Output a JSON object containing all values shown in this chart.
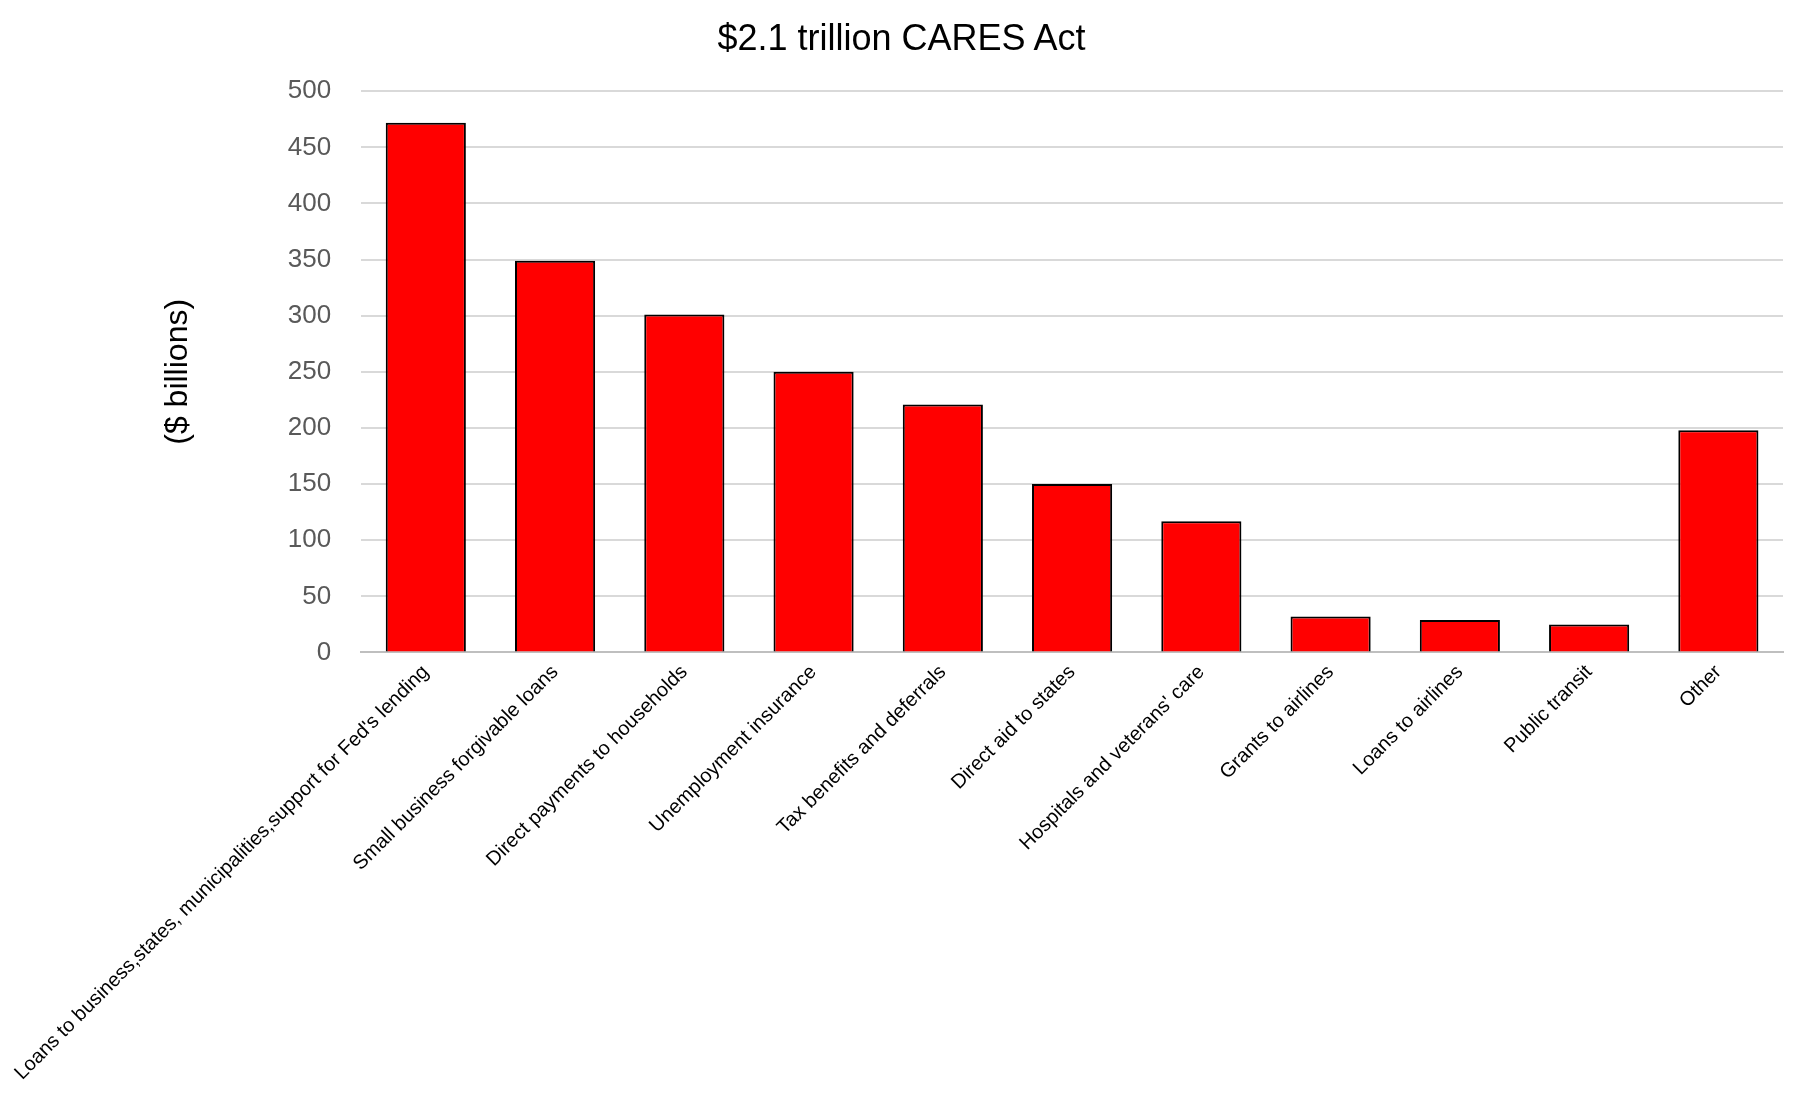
{
  "chart_data": {
    "type": "bar",
    "title": "$2.1 trillion CARES Act",
    "ylabel": "($ billions)",
    "categories": [
      "Loans to business,states, municipalities,support for Fed's lending",
      "Small business forgivable loans",
      "Direct payments to households",
      "Unemployment insurance",
      "Tax benefits and deferrals",
      "Direct aid to states",
      "Hospitals and veterans' care",
      "Grants to airlines",
      "Loans to airlines",
      "Public transit",
      "Other"
    ],
    "values": [
      472,
      349,
      301,
      250,
      221,
      150,
      117,
      32,
      29,
      25,
      198
    ],
    "color": "#ff0000",
    "ylim": [
      0,
      500
    ],
    "yticks": [
      0,
      50,
      100,
      150,
      200,
      250,
      300,
      350,
      400,
      450,
      500
    ],
    "grid": "y"
  }
}
